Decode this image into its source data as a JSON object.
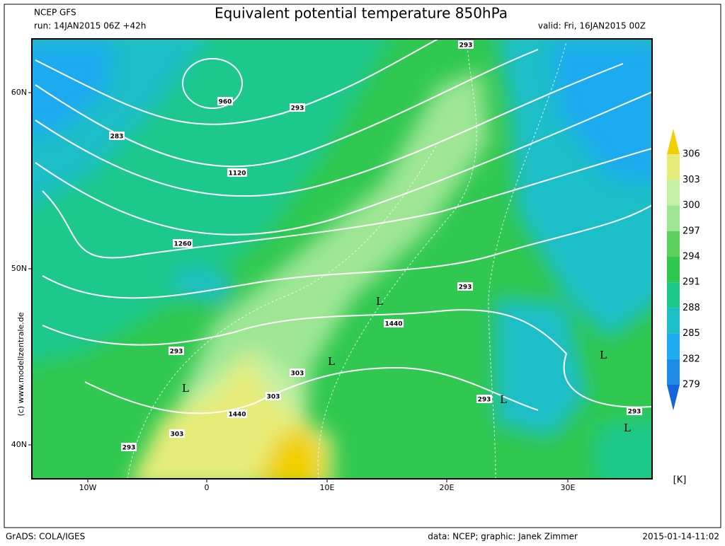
{
  "header": {
    "model": "NCEP GFS",
    "run": "run: 14JAN2015 06Z +42h",
    "title": "Equivalent potential temperature 850hPa",
    "valid": "valid: Fri, 16JAN2015 00Z"
  },
  "map": {
    "lon_labels": [
      "10W",
      "0",
      "10E",
      "20E",
      "30E"
    ],
    "lat_labels": [
      "60N",
      "50N",
      "40N"
    ],
    "contour_labels": [
      "960",
      "1120",
      "1260",
      "1440",
      "1440",
      "293",
      "293",
      "293",
      "293",
      "293",
      "293",
      "293",
      "283",
      "303",
      "303",
      "303"
    ],
    "lows": [
      "L",
      "L",
      "L",
      "L",
      "L",
      "L"
    ],
    "credit": "(c)  www.modellzentrale.de"
  },
  "colorbar": {
    "levels": [
      306,
      303,
      300,
      297,
      294,
      291,
      288,
      285,
      282,
      279
    ],
    "colors": [
      "#f0d000",
      "#e6ec78",
      "#c4f0a4",
      "#9ee694",
      "#5cd25c",
      "#30c850",
      "#1ec88c",
      "#1ebec8",
      "#1eaaf0",
      "#1e8ce6",
      "#1464dc"
    ],
    "unit": "[K]"
  },
  "footer": {
    "software": "GrADS: COLA/IGES",
    "source": "data: NCEP; graphic: Janek Zimmer",
    "timestamp": "2015-01-14-11:02"
  }
}
